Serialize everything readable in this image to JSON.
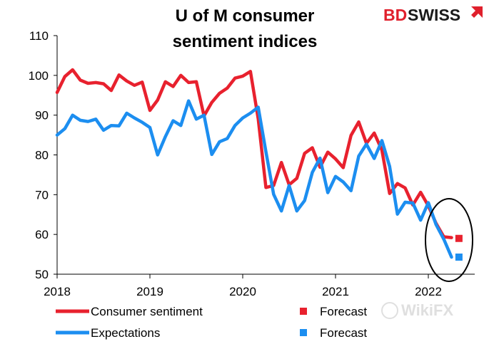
{
  "chart_data": {
    "type": "line",
    "title_line1": "U of M consumer",
    "title_line2": "sentiment indices",
    "ylim": [
      50,
      110
    ],
    "yticks": [
      50,
      60,
      70,
      80,
      90,
      100,
      110
    ],
    "xlim": [
      2018,
      2022.5
    ],
    "xticks": [
      2018,
      2019,
      2020,
      2021,
      2022
    ],
    "series": [
      {
        "name": "Consumer sentiment",
        "color": "#e8212e",
        "x": [
          2018.0,
          2018.083,
          2018.167,
          2018.25,
          2018.333,
          2018.417,
          2018.5,
          2018.583,
          2018.667,
          2018.75,
          2018.833,
          2018.917,
          2019.0,
          2019.083,
          2019.167,
          2019.25,
          2019.333,
          2019.417,
          2019.5,
          2019.583,
          2019.667,
          2019.75,
          2019.833,
          2019.917,
          2020.0,
          2020.083,
          2020.167,
          2020.25,
          2020.333,
          2020.417,
          2020.5,
          2020.583,
          2020.667,
          2020.75,
          2020.833,
          2020.917,
          2021.0,
          2021.083,
          2021.167,
          2021.25,
          2021.333,
          2021.417,
          2021.5,
          2021.583,
          2021.667,
          2021.75,
          2021.833,
          2021.917,
          2022.0,
          2022.083,
          2022.167,
          2022.25
        ],
        "values": [
          95.7,
          99.7,
          101.4,
          98.8,
          98.0,
          98.2,
          97.9,
          96.2,
          100.1,
          98.6,
          97.5,
          98.3,
          91.2,
          93.8,
          98.4,
          97.2,
          100.0,
          98.2,
          98.4,
          89.8,
          93.2,
          95.5,
          96.8,
          99.3,
          99.8,
          101.0,
          89.1,
          71.8,
          72.3,
          78.1,
          72.5,
          74.1,
          80.4,
          81.8,
          76.9,
          80.7,
          79.0,
          76.8,
          84.9,
          88.3,
          82.9,
          85.5,
          81.2,
          70.3,
          72.8,
          71.7,
          67.4,
          70.6,
          67.2,
          62.8,
          59.4,
          59.2
        ]
      },
      {
        "name": "Expectations",
        "color": "#1c8ef0",
        "x": [
          2018.0,
          2018.083,
          2018.167,
          2018.25,
          2018.333,
          2018.417,
          2018.5,
          2018.583,
          2018.667,
          2018.75,
          2018.833,
          2018.917,
          2019.0,
          2019.083,
          2019.167,
          2019.25,
          2019.333,
          2019.417,
          2019.5,
          2019.583,
          2019.667,
          2019.75,
          2019.833,
          2019.917,
          2020.0,
          2020.083,
          2020.167,
          2020.25,
          2020.333,
          2020.417,
          2020.5,
          2020.583,
          2020.667,
          2020.75,
          2020.833,
          2020.917,
          2021.0,
          2021.083,
          2021.167,
          2021.25,
          2021.333,
          2021.417,
          2021.5,
          2021.583,
          2021.667,
          2021.75,
          2021.833,
          2021.917,
          2022.0,
          2022.083,
          2022.167,
          2022.25
        ],
        "values": [
          85.0,
          86.6,
          90.0,
          88.7,
          88.4,
          89.0,
          86.2,
          87.4,
          87.3,
          90.5,
          89.3,
          88.2,
          86.9,
          80.0,
          84.6,
          88.6,
          87.4,
          93.6,
          89.0,
          90.0,
          80.1,
          83.3,
          84.1,
          87.4,
          89.3,
          90.5,
          92.0,
          80.8,
          70.1,
          65.9,
          72.3,
          65.9,
          68.5,
          75.6,
          79.2,
          70.5,
          74.6,
          73.2,
          71.0,
          79.7,
          82.7,
          79.1,
          83.6,
          77.1,
          65.1,
          68.1,
          67.9,
          63.6,
          68.0,
          62.5,
          58.8,
          54.3
        ]
      }
    ],
    "forecasts": [
      {
        "name": "Forecast",
        "color": "#e8212e",
        "x": 2022.33,
        "value": 59.0
      },
      {
        "name": "Forecast",
        "color": "#1c8ef0",
        "x": 2022.33,
        "value": 54.3
      }
    ],
    "grid": false,
    "legend": "bottom",
    "annotation": "ellipse around latest readings and forecasts"
  },
  "brand": {
    "part1": "BD",
    "part2": "SWISS",
    "accent_color": "#e0202c"
  },
  "watermark": {
    "text": "WikiFX"
  }
}
